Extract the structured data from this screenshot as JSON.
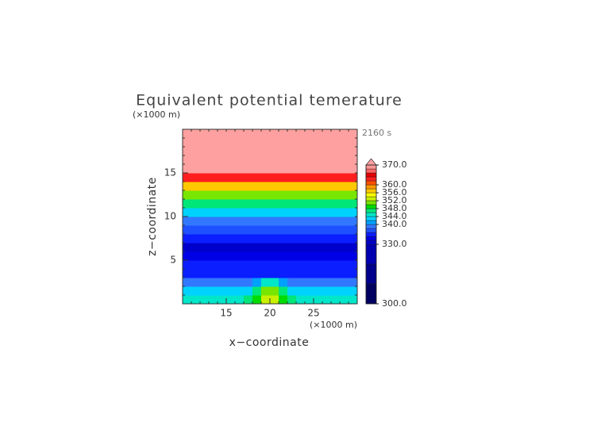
{
  "chart_data": {
    "type": "contour",
    "title": "Equivalent potential temerature",
    "y_unit": "(×1000 m)",
    "x_unit": "(×1000 m)",
    "time_label": "2160 s",
    "x_label": "x−coordinate",
    "y_label": "z−coordinate",
    "xlim": [
      10,
      30
    ],
    "ylim": [
      0,
      20
    ],
    "xticks": [
      15,
      20,
      25
    ],
    "yticks": [
      5,
      10,
      15
    ],
    "x": [
      10.5,
      11.5,
      12.5,
      13.5,
      14.5,
      15.5,
      16.5,
      17.5,
      18.5,
      19.5,
      20.5,
      21.5,
      22.5,
      23.5,
      24.5,
      25.5,
      26.5,
      27.5,
      28.5,
      29.5
    ],
    "y": [
      0.5,
      1.5,
      2.5,
      3.5,
      4.5,
      5.5,
      6.5,
      7.5,
      8.5,
      9.5,
      10.5,
      11.5,
      12.5,
      13.5,
      14.5,
      15.5,
      16.5,
      17.5,
      18.5,
      19.5
    ],
    "values": [
      [
        344,
        344,
        344,
        344,
        344,
        344,
        344,
        346,
        348,
        352,
        352,
        348,
        346,
        344,
        344,
        344,
        344,
        344,
        344,
        344
      ],
      [
        342,
        342,
        342,
        342,
        342,
        342,
        342,
        343,
        346,
        350,
        350,
        346,
        343,
        342,
        342,
        342,
        342,
        342,
        342,
        342
      ],
      [
        338,
        338,
        338,
        338,
        338,
        338,
        338,
        338,
        341,
        345,
        345,
        341,
        338,
        338,
        338,
        338,
        338,
        338,
        338,
        338
      ],
      [
        335,
        335,
        335,
        335,
        335,
        335,
        335,
        335,
        335,
        335,
        335,
        335,
        335,
        335,
        335,
        335,
        335,
        335,
        335,
        335
      ],
      [
        334,
        334,
        334,
        334,
        334,
        334,
        334,
        334,
        334,
        334,
        334,
        334,
        334,
        334,
        334,
        334,
        334,
        334,
        334,
        334
      ],
      [
        332,
        332,
        332,
        332,
        332,
        332,
        332,
        332,
        332,
        332,
        332,
        332,
        332,
        332,
        332,
        332,
        332,
        332,
        332,
        332
      ],
      [
        331,
        331,
        331,
        331,
        331,
        331,
        331,
        331,
        331,
        331,
        331,
        331,
        331,
        331,
        331,
        331,
        331,
        331,
        331,
        331
      ],
      [
        334,
        334,
        334,
        334,
        334,
        334,
        334,
        334,
        334,
        334,
        334,
        334,
        334,
        334,
        334,
        334,
        334,
        334,
        334,
        334
      ],
      [
        337,
        337,
        337,
        337,
        337,
        337,
        337,
        337,
        337,
        337,
        337,
        337,
        337,
        337,
        337,
        337,
        337,
        337,
        337,
        337
      ],
      [
        339,
        339,
        339,
        339,
        339,
        339,
        339,
        339,
        339,
        339,
        339,
        339,
        339,
        339,
        339,
        339,
        339,
        339,
        339,
        339
      ],
      [
        342,
        342,
        342,
        342,
        342,
        342,
        342,
        342,
        342,
        342,
        342,
        342,
        342,
        342,
        342,
        342,
        342,
        342,
        342,
        342
      ],
      [
        347,
        347,
        347,
        347,
        347,
        347,
        347,
        347,
        347,
        347,
        347,
        347,
        347,
        347,
        347,
        347,
        347,
        347,
        347,
        347
      ],
      [
        351,
        351,
        351,
        351,
        351,
        351,
        351,
        351,
        351,
        351,
        351,
        351,
        351,
        351,
        351,
        351,
        351,
        351,
        351,
        351
      ],
      [
        356,
        356,
        356,
        356,
        356,
        356,
        356,
        356,
        356,
        356,
        356,
        356,
        356,
        356,
        356,
        356,
        356,
        356,
        356,
        356
      ],
      [
        362,
        362,
        362,
        362,
        362,
        362,
        362,
        362,
        362,
        362,
        362,
        362,
        362,
        362,
        362,
        362,
        362,
        362,
        362,
        362
      ],
      [
        375,
        375,
        375,
        375,
        375,
        375,
        375,
        375,
        375,
        375,
        375,
        375,
        375,
        375,
        375,
        375,
        375,
        375,
        375,
        375
      ],
      [
        375,
        375,
        375,
        375,
        375,
        375,
        375,
        375,
        375,
        375,
        375,
        375,
        375,
        375,
        375,
        375,
        375,
        375,
        375,
        375
      ],
      [
        375,
        375,
        375,
        375,
        375,
        375,
        375,
        375,
        375,
        375,
        375,
        375,
        375,
        375,
        375,
        375,
        375,
        375,
        375,
        375
      ],
      [
        375,
        375,
        375,
        375,
        375,
        375,
        375,
        375,
        375,
        375,
        375,
        375,
        375,
        375,
        375,
        375,
        375,
        375,
        375,
        375
      ],
      [
        375,
        375,
        375,
        375,
        375,
        375,
        375,
        375,
        375,
        375,
        375,
        375,
        375,
        375,
        375,
        375,
        375,
        375,
        375,
        375
      ]
    ],
    "colorbar": {
      "lim": [
        300,
        370
      ],
      "bounds": [
        300,
        310,
        320,
        330,
        332,
        334,
        336,
        338,
        340,
        342,
        344,
        346,
        348,
        350,
        352,
        354,
        356,
        358,
        360,
        362,
        364,
        366,
        368,
        370
      ],
      "colors": [
        "#000060",
        "#00008a",
        "#0000b0",
        "#0000cc",
        "#0000e6",
        "#0a1eff",
        "#1e50ff",
        "#3278ff",
        "#00a0ff",
        "#00d2ff",
        "#00e6c8",
        "#00e678",
        "#00dc00",
        "#78e600",
        "#c8f000",
        "#ffff00",
        "#ffc800",
        "#ff9600",
        "#ff5000",
        "#ff1e1e",
        "#e60000",
        "#ff6464",
        "#ff9696"
      ],
      "extend_color": "#ffa0a0",
      "ticks": [
        {
          "value": 370,
          "label": "370.0"
        },
        {
          "value": 360,
          "label": "360.0"
        },
        {
          "value": 356,
          "label": "356.0"
        },
        {
          "value": 352,
          "label": "352.0"
        },
        {
          "value": 348,
          "label": "348.0"
        },
        {
          "value": 344,
          "label": "344.0"
        },
        {
          "value": 340,
          "label": "340.0"
        },
        {
          "value": 330,
          "label": "330.0"
        },
        {
          "value": 300,
          "label": "300.0"
        }
      ]
    }
  }
}
